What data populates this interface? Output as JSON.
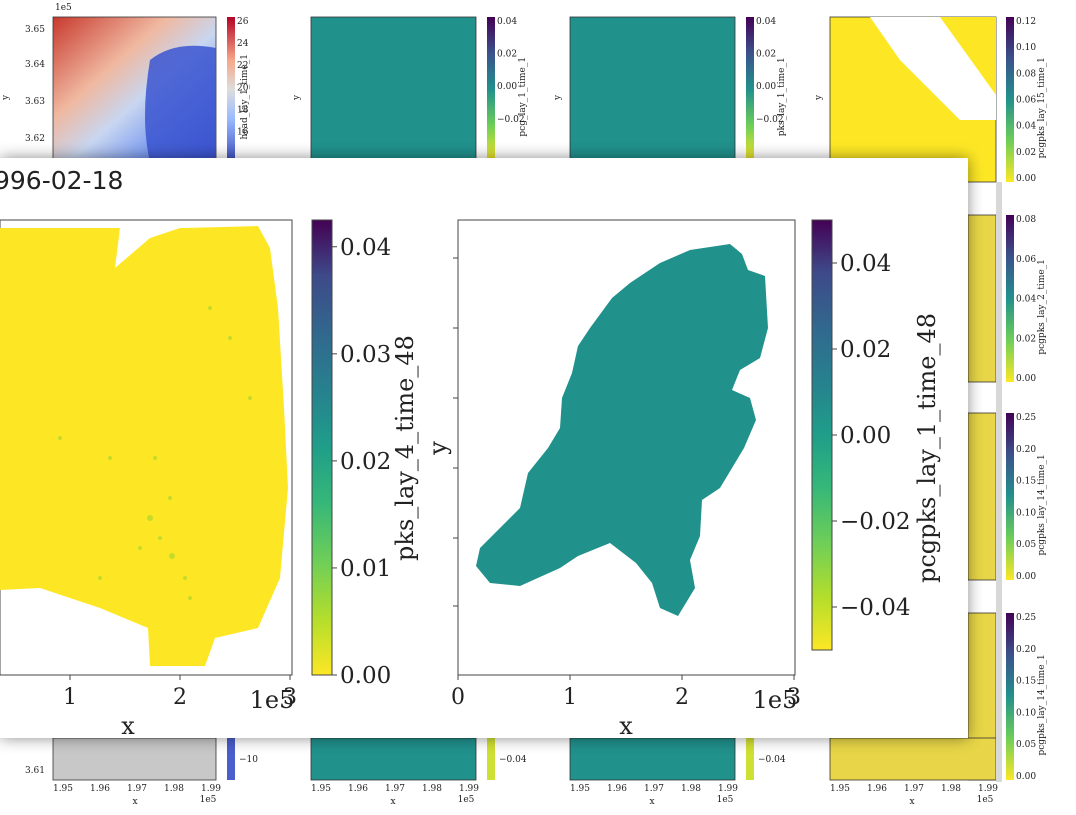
{
  "colors": {
    "viridis": [
      "#fde725",
      "#b5de2b",
      "#6ece58",
      "#35b779",
      "#1f9e89",
      "#26828e",
      "#31688e",
      "#3e4989",
      "#482878",
      "#440154"
    ],
    "coolwarm": [
      "#3b4cc0",
      "#6788ee",
      "#9abbff",
      "#c9d7f0",
      "#edd1c2",
      "#f7a889",
      "#e26952",
      "#b40426"
    ],
    "teal": "#21918c",
    "yellow": "#fde725"
  },
  "background_panels": [
    {
      "cbar_label": "head_lay_1_time_1",
      "cbar_ticks": [
        "26",
        "24",
        "22",
        "20",
        "18",
        "16"
      ],
      "cbar_bottom_tick": "−10",
      "scale": "coolwarm"
    },
    {
      "cbar_label": "pcg_lay_1_time_1",
      "cbar_ticks": [
        "0.04",
        "0.02",
        "0.00",
        "−0.02"
      ],
      "cbar_bottom_tick": "−0.04",
      "scale": "viridis"
    },
    {
      "cbar_label": "pks_lay_1_time_1",
      "cbar_ticks": [
        "0.04",
        "0.02",
        "0.00",
        "−0.02"
      ],
      "cbar_bottom_tick": "−0.04",
      "scale": "viridis"
    },
    {
      "cbar_label": "pcgpks_lay_15_time_1",
      "cbar_ticks": [
        "0.12",
        "0.10",
        "0.08",
        "0.06",
        "0.04",
        "0.02",
        "0.00"
      ],
      "scale": "viridis"
    },
    {
      "cbar_label": "pcgpks_lay_2_time_1",
      "cbar_ticks": [
        "0.08",
        "0.06",
        "0.04",
        "0.02",
        "0.00"
      ],
      "scale": "viridis"
    },
    {
      "cbar_label": "pcgpks_lay_14_time_1",
      "cbar_ticks": [
        "0.25",
        "0.20",
        "0.15",
        "0.10",
        "0.05",
        "0.00"
      ],
      "scale": "viridis"
    },
    {
      "cbar_label": "pcgpks_lay_14_time_1",
      "cbar_ticks": [
        "0.25",
        "0.20",
        "0.15",
        "0.10",
        "0.05",
        "0.00"
      ],
      "scale": "viridis"
    }
  ],
  "background_axes": {
    "y_ticks": [
      "3.65",
      "3.64",
      "3.63",
      "3.62",
      "3.61"
    ],
    "y_offset": "1e5",
    "y_label": "y",
    "x_ticks": [
      "1.95",
      "1.96",
      "1.97",
      "1.98",
      "1.99"
    ],
    "x_offset": "1e5",
    "x_label": "x"
  },
  "overlay": {
    "title": "996-02-18",
    "left_plot": {
      "x_ticks": [
        "1",
        "2",
        "3"
      ],
      "x_label": "x",
      "x_offset": "1e5",
      "cbar_label": "pks_lay_4_time_48",
      "cbar_ticks": [
        "0.04",
        "0.03",
        "0.02",
        "0.01",
        "0.00"
      ]
    },
    "right_plot": {
      "x_ticks": [
        "0",
        "1",
        "2",
        "3"
      ],
      "x_label": "x",
      "x_offset": "1e5",
      "y_label": "y",
      "cbar_label": "pcgpks_lay_1_time_48",
      "cbar_ticks": [
        "0.04",
        "0.02",
        "0.00",
        "−0.02",
        "−0.04"
      ]
    }
  },
  "chart_data": [
    {
      "type": "heatmap",
      "title": "",
      "xlabel": "x",
      "ylabel": "y",
      "colorbar_label": "pks_lay_4_time_48",
      "colorbar_range": [
        0.0,
        0.04
      ],
      "x_ticks": [
        1,
        2,
        3
      ],
      "x_scale": "1e5",
      "colormap": "viridis",
      "dominant_value": 0.0
    },
    {
      "type": "heatmap",
      "title": "",
      "xlabel": "x",
      "ylabel": "y",
      "colorbar_label": "pcgpks_lay_1_time_48",
      "colorbar_range": [
        -0.05,
        0.05
      ],
      "x_ticks": [
        0,
        1,
        2,
        3
      ],
      "x_scale": "1e5",
      "colormap": "viridis",
      "dominant_value": 0.0
    }
  ]
}
